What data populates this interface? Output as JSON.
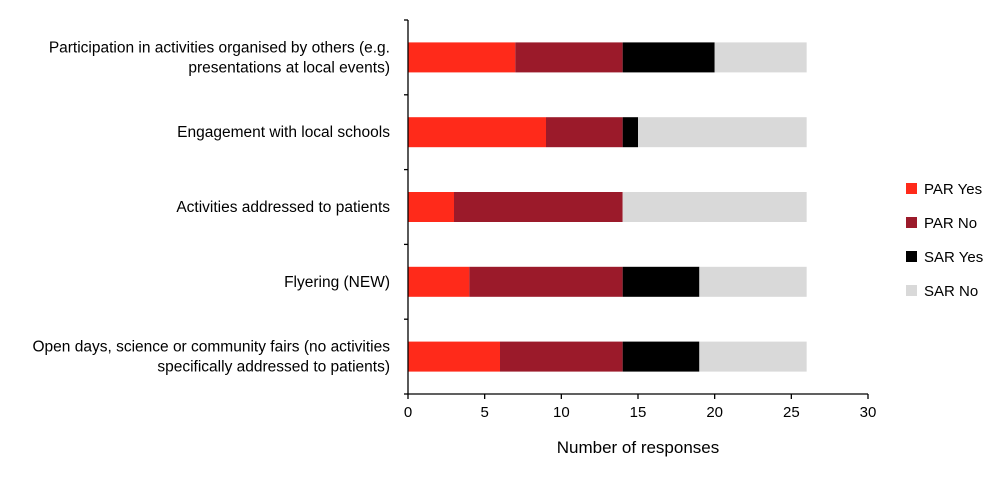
{
  "chart_data": {
    "type": "bar",
    "orientation": "horizontal",
    "stacked": true,
    "categories": [
      [
        "Participation in activities organised by others (e.g.",
        "presentations at local events)"
      ],
      [
        "Engagement with local schools"
      ],
      [
        "Activities addressed to patients"
      ],
      [
        "Flyering (NEW)"
      ],
      [
        "Open days, science or community fairs (no activities",
        "specifically addressed to patients)"
      ]
    ],
    "series": [
      {
        "name": "PAR Yes",
        "color": "#ff2a1a",
        "values": [
          7,
          9,
          3,
          4,
          6
        ]
      },
      {
        "name": "PAR No",
        "color": "#9b1a2a",
        "values": [
          7,
          5,
          11,
          10,
          8
        ]
      },
      {
        "name": "SAR Yes",
        "color": "#000000",
        "values": [
          6,
          1,
          0,
          5,
          5
        ]
      },
      {
        "name": "SAR No",
        "color": "#d9d9d9",
        "values": [
          6,
          11,
          12,
          7,
          7
        ]
      }
    ],
    "xlabel": "Number of responses",
    "xlim": [
      0,
      30
    ],
    "xticks": [
      0,
      5,
      10,
      15,
      20,
      25,
      30
    ],
    "grid": false,
    "legend": "right"
  }
}
